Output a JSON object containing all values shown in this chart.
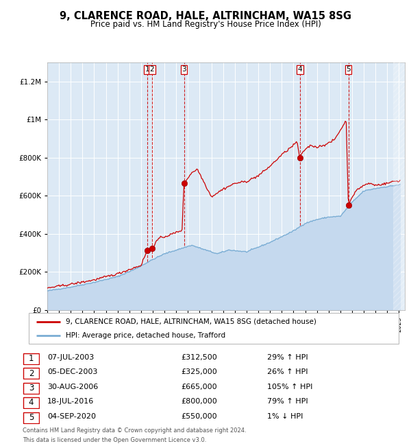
{
  "title": "9, CLARENCE ROAD, HALE, ALTRINCHAM, WA15 8SG",
  "subtitle": "Price paid vs. HM Land Registry's House Price Index (HPI)",
  "footer1": "Contains HM Land Registry data © Crown copyright and database right 2024.",
  "footer2": "This data is licensed under the Open Government Licence v3.0.",
  "legend_label_red": "9, CLARENCE ROAD, HALE, ALTRINCHAM, WA15 8SG (detached house)",
  "legend_label_blue": "HPI: Average price, detached house, Trafford",
  "sales": [
    {
      "num": 1,
      "date": "07-JUL-2003",
      "price": 312500,
      "pct": "29%",
      "dir": "↑"
    },
    {
      "num": 2,
      "date": "05-DEC-2003",
      "price": 325000,
      "pct": "26%",
      "dir": "↑"
    },
    {
      "num": 3,
      "date": "30-AUG-2006",
      "price": 665000,
      "pct": "105%",
      "dir": "↑"
    },
    {
      "num": 4,
      "date": "18-JUL-2016",
      "price": 800000,
      "pct": "79%",
      "dir": "↑"
    },
    {
      "num": 5,
      "date": "04-SEP-2020",
      "price": 550000,
      "pct": "1%",
      "dir": "↓"
    }
  ],
  "sale_dates_decimal": [
    2003.52,
    2003.92,
    2006.66,
    2016.54,
    2020.68
  ],
  "sale_prices": [
    312500,
    325000,
    665000,
    800000,
    550000
  ],
  "ylim": [
    0,
    1300000
  ],
  "xlim_start": 1995.0,
  "xlim_end": 2025.5,
  "bg_color": "#dce9f5",
  "red_color": "#cc0000",
  "blue_color": "#7aadd4",
  "blue_fill": "#c5d9ee",
  "grid_color": "#ffffff",
  "vline_color": "#cc0000",
  "hpi_anchors": {
    "1995.0": 100000,
    "1997.0": 120000,
    "1999.0": 145000,
    "2001.0": 175000,
    "2002.5": 215000,
    "2004.0": 265000,
    "2005.0": 295000,
    "2007.3": 340000,
    "2008.5": 315000,
    "2009.5": 295000,
    "2010.5": 315000,
    "2012.0": 305000,
    "2014.0": 355000,
    "2016.0": 415000,
    "2017.0": 455000,
    "2018.0": 475000,
    "2019.0": 488000,
    "2020.0": 492000,
    "2021.0": 565000,
    "2022.0": 625000,
    "2023.0": 638000,
    "2024.0": 648000,
    "2025.3": 660000
  },
  "prop_anchors": {
    "1995.0": 115000,
    "1997.0": 135000,
    "1999.0": 158000,
    "2001.0": 190000,
    "2003.0": 235000,
    "2003.52": 312500,
    "2003.92": 325000,
    "2004.5": 375000,
    "2005.5": 395000,
    "2006.5": 420000,
    "2006.66": 665000,
    "2007.3": 720000,
    "2007.8": 740000,
    "2008.5": 655000,
    "2009.0": 595000,
    "2010.0": 635000,
    "2011.0": 665000,
    "2012.0": 675000,
    "2013.0": 705000,
    "2014.0": 755000,
    "2015.0": 815000,
    "2016.0": 865000,
    "2016.3": 885000,
    "2016.54": 800000,
    "2017.0": 845000,
    "2017.5": 865000,
    "2018.0": 855000,
    "2018.5": 865000,
    "2019.0": 875000,
    "2019.5": 895000,
    "2020.0": 945000,
    "2020.5": 995000,
    "2020.68": 550000,
    "2021.0": 595000,
    "2021.5": 635000,
    "2022.0": 655000,
    "2022.5": 665000,
    "2023.0": 655000,
    "2023.5": 660000,
    "2024.0": 665000,
    "2024.5": 675000,
    "2025.3": 680000
  }
}
